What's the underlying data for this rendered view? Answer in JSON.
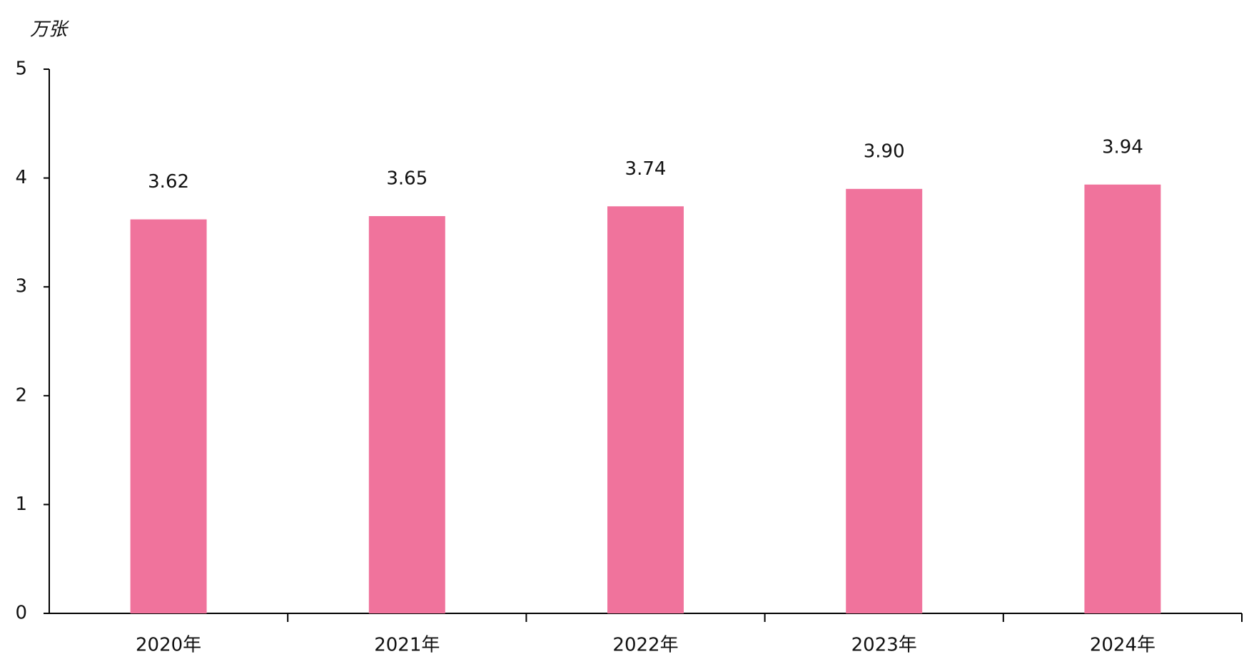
{
  "chart_data": {
    "type": "bar",
    "y_label": "万张",
    "categories": [
      "2020年",
      "2021年",
      "2022年",
      "2023年",
      "2024年"
    ],
    "values": [
      3.62,
      3.65,
      3.74,
      3.9,
      3.94
    ],
    "value_labels": [
      "3.62",
      "3.65",
      "3.74",
      "3.90",
      "3.94"
    ],
    "color": "#f0739c",
    "ylim": [
      0,
      5
    ],
    "yticks": [
      0,
      1,
      2,
      3,
      4,
      5
    ],
    "grid": false
  }
}
